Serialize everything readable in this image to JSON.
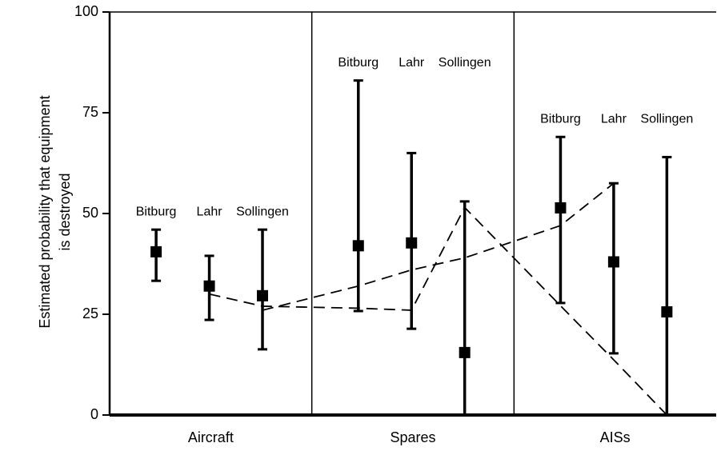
{
  "chart_data": {
    "type": "errorbar",
    "ylabel": [
      "Estimated probability that equipment",
      "is destroyed"
    ],
    "ylim": [
      0,
      100
    ],
    "yticks": [
      0,
      25,
      50,
      75,
      100
    ],
    "color": "#000000",
    "groups": [
      {
        "name": "Aircraft",
        "sites": [
          "Bitburg",
          "Lahr",
          "Sollingen"
        ],
        "values": [
          40.5,
          32,
          29.6
        ],
        "low": [
          33.3,
          23.6,
          16.3
        ],
        "high": [
          46,
          39.5,
          46
        ]
      },
      {
        "name": "Spares",
        "sites": [
          "Bitburg",
          "Lahr",
          "Sollingen"
        ],
        "values": [
          42,
          42.7,
          15.5
        ],
        "low": [
          25.8,
          21.4,
          0
        ],
        "high": [
          83,
          65,
          53
        ]
      },
      {
        "name": "AISs",
        "sites": [
          "Bitburg",
          "Lahr",
          "Sollingen"
        ],
        "values": [
          51.4,
          38,
          25.6
        ],
        "low": [
          27.8,
          15.3,
          0
        ],
        "high": [
          69,
          57.5,
          64
        ]
      }
    ],
    "dashed_lines": [
      {
        "values": [
          null,
          30,
          27,
          26.5,
          26,
          51.5,
          27.1,
          13.7,
          0
        ]
      },
      {
        "values": [
          null,
          null,
          26,
          32,
          36,
          39,
          47,
          57.5,
          null
        ]
      }
    ]
  }
}
